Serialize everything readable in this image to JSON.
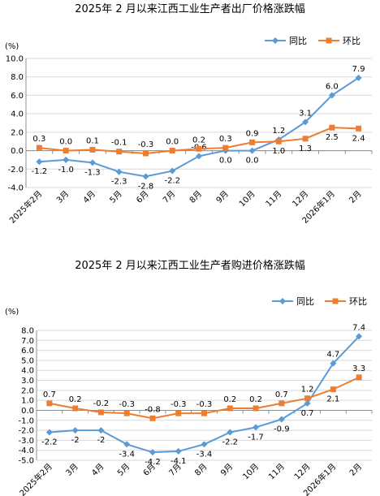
{
  "chart_data": [
    {
      "type": "line",
      "title": "2025年 2 月以来江西工业生产者出厂价格涨跌幅",
      "ylabel": "(%)",
      "ylim": [
        -4.0,
        10.0
      ],
      "yticks": [
        "10.0",
        "8.0",
        "6.0",
        "4.0",
        "2.0",
        "0.0",
        "-2.0",
        "-4.0"
      ],
      "ytick_values": [
        10,
        8,
        6,
        4,
        2,
        0,
        -2,
        -4
      ],
      "categories": [
        "2025年2月",
        "3月",
        "4月",
        "5月",
        "6月",
        "7月",
        "8月",
        "9月",
        "10月",
        "11月",
        "12月",
        "2026年1月",
        "2月"
      ],
      "grid": true,
      "legend": "top-right",
      "series": [
        {
          "name": "同比",
          "color": "#5b9bd5",
          "marker": "diamond",
          "values": [
            -1.2,
            -1.0,
            -1.3,
            -2.3,
            -2.8,
            -2.2,
            -0.6,
            0.0,
            0.0,
            1.2,
            3.1,
            6.0,
            7.9
          ],
          "labels": [
            "-1.2",
            "-1.0",
            "-1.3",
            "-2.3",
            "-2.8",
            "-2.2",
            "-0.6",
            "0.0",
            "0.0",
            "1.2",
            "3.1",
            "6.0",
            "7.9"
          ]
        },
        {
          "name": "环比",
          "color": "#ed7d31",
          "marker": "square",
          "values": [
            0.3,
            0.0,
            0.1,
            -0.1,
            -0.3,
            0.0,
            0.2,
            0.3,
            0.9,
            1.0,
            1.3,
            2.5,
            2.4
          ],
          "labels": [
            "0.3",
            "0.0",
            "0.1",
            "-0.1",
            "-0.3",
            "0.0",
            "0.2",
            "0.3",
            "0.9",
            "1.0",
            "1.3",
            "2.5",
            "2.4"
          ]
        }
      ]
    },
    {
      "type": "line",
      "title": "2025年 2 月以来江西工业生产者购进价格涨跌幅",
      "ylabel": "(%)",
      "ylim": [
        -5.0,
        8.0
      ],
      "yticks": [
        "8.0",
        "7.0",
        "6.0",
        "5.0",
        "4.0",
        "3.0",
        "2.0",
        "1.0",
        "0.0",
        "-1.0",
        "-2.0",
        "-3.0",
        "-4.0",
        "-5.0"
      ],
      "ytick_values": [
        8,
        7,
        6,
        5,
        4,
        3,
        2,
        1,
        0,
        -1,
        -2,
        -3,
        -4,
        -5
      ],
      "categories": [
        "2025年2月",
        "3月",
        "4月",
        "5月",
        "6月",
        "7月",
        "8月",
        "9月",
        "10月",
        "11月",
        "12月",
        "2026年1月",
        "2月"
      ],
      "grid": true,
      "legend": "top-right",
      "series": [
        {
          "name": "同比",
          "color": "#5b9bd5",
          "marker": "diamond",
          "values": [
            -2.2,
            -2.0,
            -2.0,
            -3.4,
            -4.2,
            -4.1,
            -3.4,
            -2.2,
            -1.7,
            -0.9,
            0.7,
            4.7,
            7.4
          ],
          "labels": [
            "-2.2",
            "-2",
            "-2",
            "-3.4",
            "-4.2",
            "-4.1",
            "-3.4",
            "-2.2",
            "-1.7",
            "-0.9",
            "0.7",
            "4.7",
            "7.4"
          ]
        },
        {
          "name": "环比",
          "color": "#ed7d31",
          "marker": "square",
          "values": [
            0.7,
            0.2,
            -0.2,
            -0.3,
            -0.8,
            -0.3,
            -0.3,
            0.2,
            0.2,
            0.7,
            1.2,
            2.1,
            3.3
          ],
          "labels": [
            "0.7",
            "0.2",
            "-0.2",
            "-0.3",
            "-0.8",
            "-0.3",
            "-0.3",
            "0.2",
            "0.2",
            "0.7",
            "1.2",
            "2.1",
            "3.3"
          ]
        }
      ]
    }
  ]
}
